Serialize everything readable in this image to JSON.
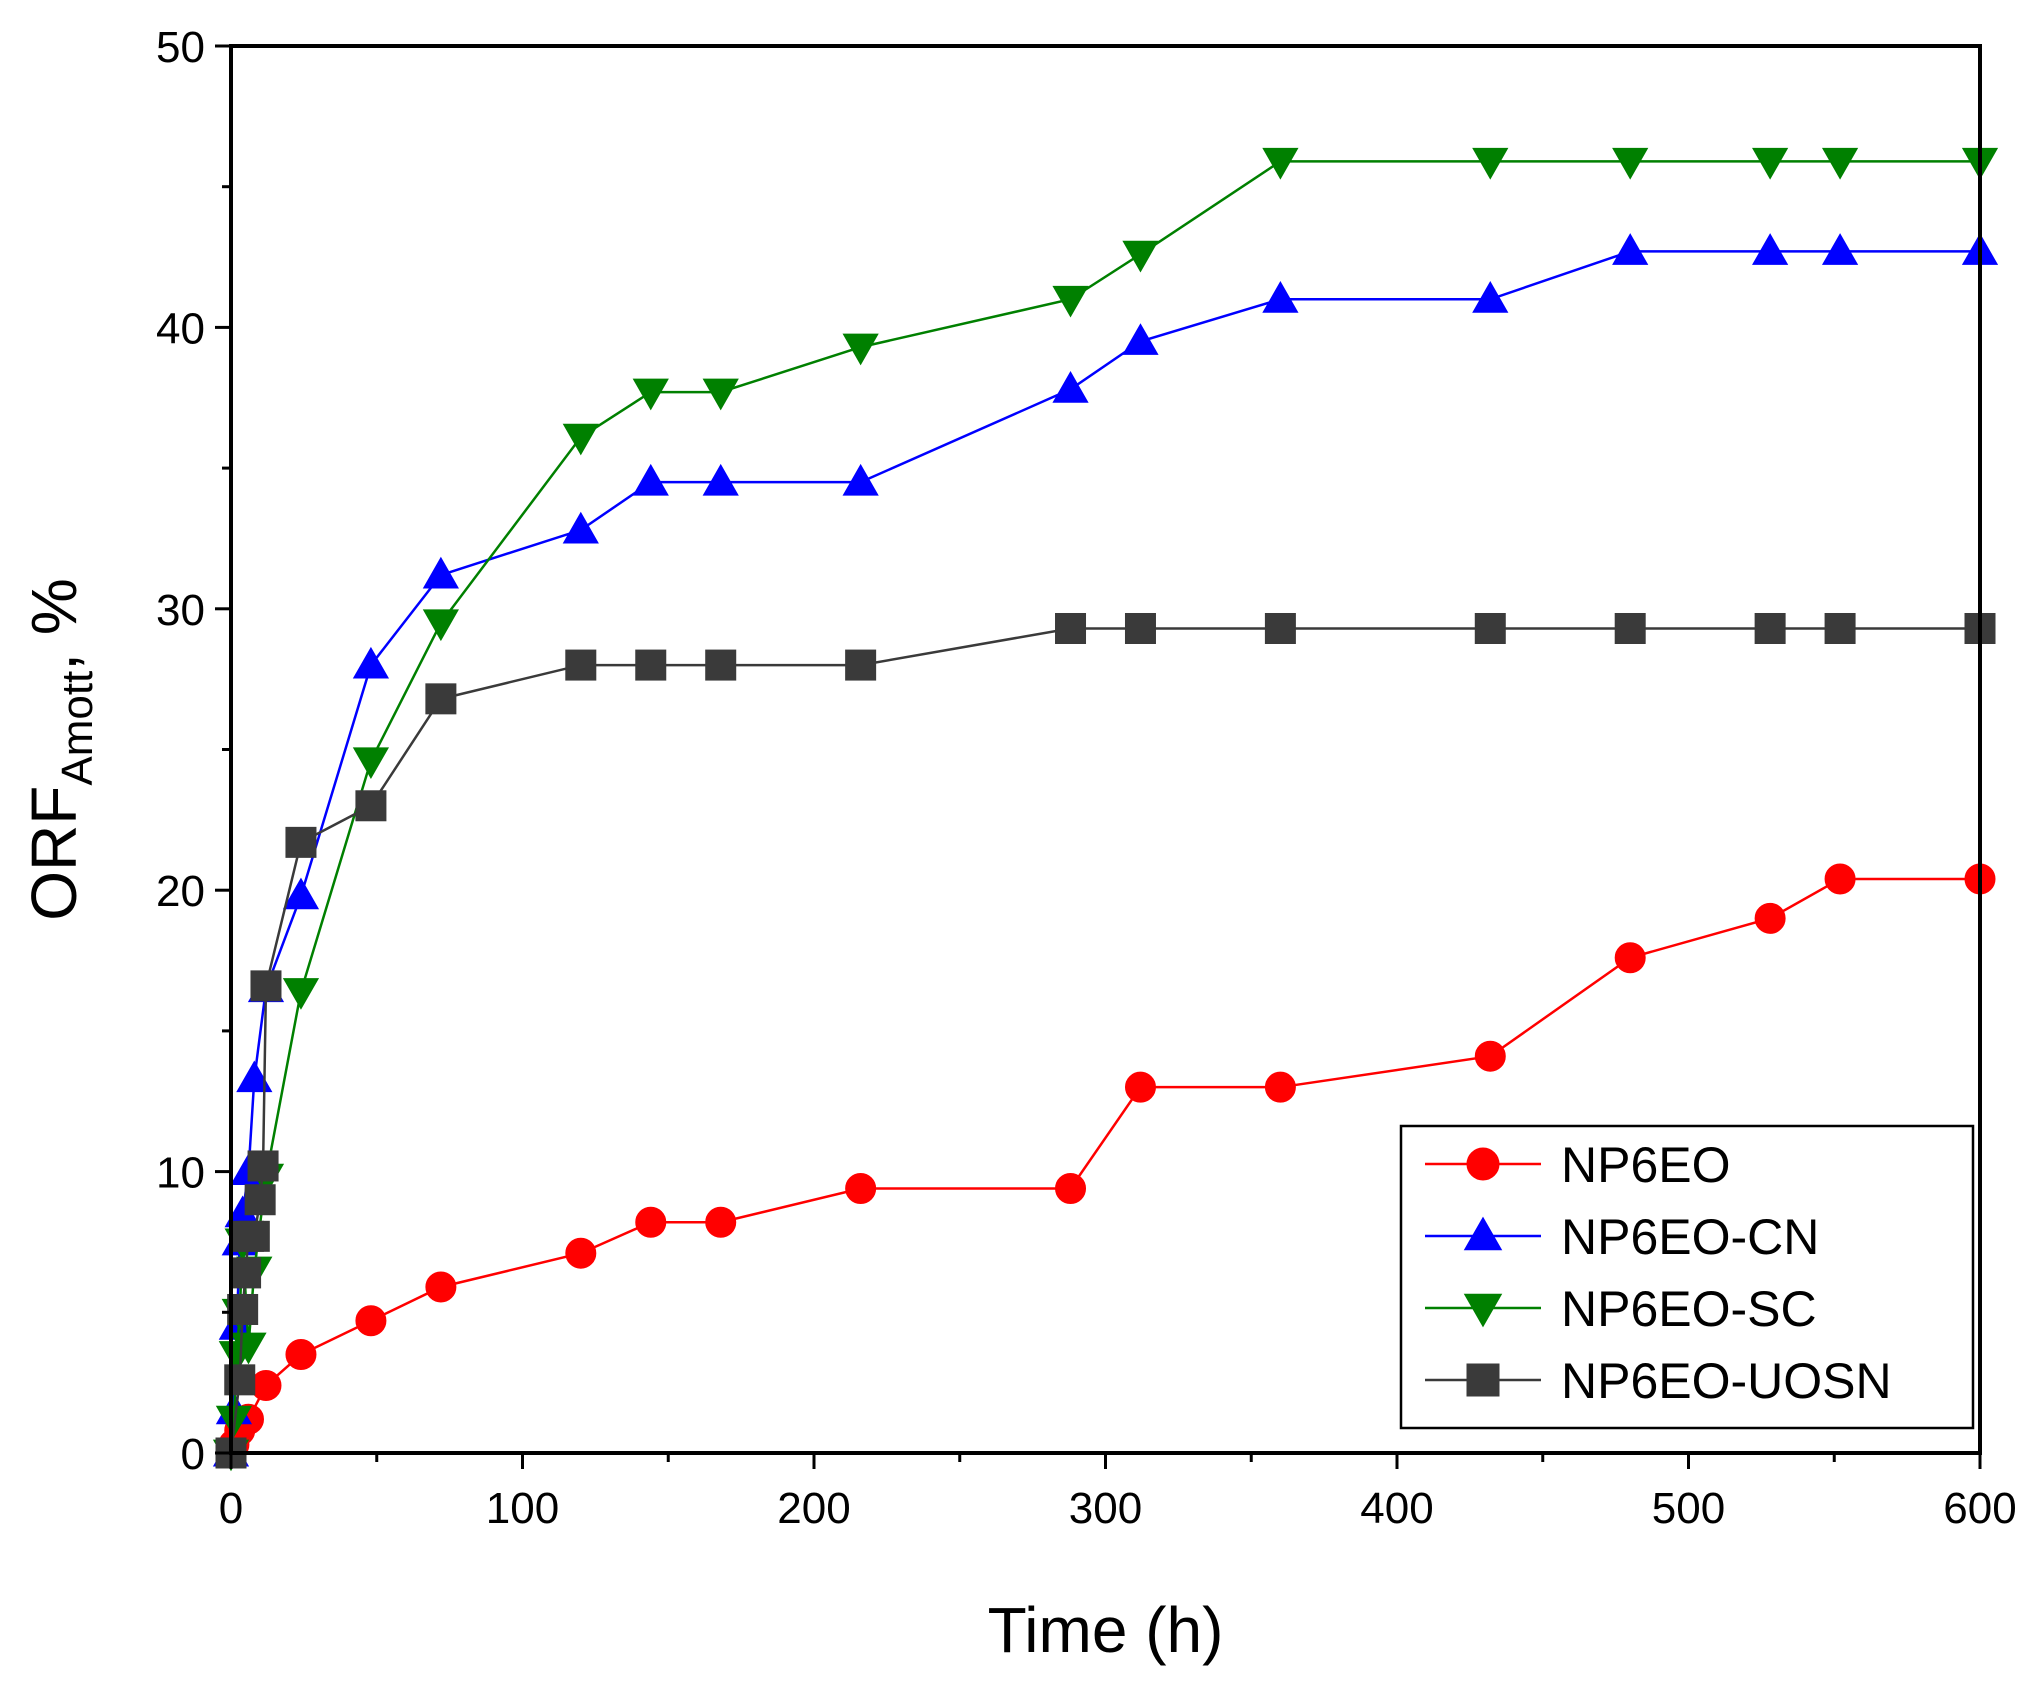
{
  "chart_data": {
    "type": "line",
    "title": "",
    "xlabel": "Time (h)",
    "ylabel": {
      "main": "ORF",
      "subscript": "Amott",
      "suffix": ", %"
    },
    "xlim": [
      0,
      600
    ],
    "ylim": [
      0,
      50
    ],
    "xticks": [
      0,
      100,
      200,
      300,
      400,
      500,
      600
    ],
    "yticks": [
      0,
      10,
      20,
      30,
      40,
      50
    ],
    "grid": false,
    "legend_position": "bottom-right",
    "series": [
      {
        "name": "NP6EO",
        "color": "#ff0000",
        "marker": "circle",
        "x": [
          0,
          1,
          3,
          6,
          12,
          24,
          48,
          72,
          120,
          144,
          168,
          216,
          288,
          312,
          360,
          432,
          480,
          528,
          552,
          600
        ],
        "y": [
          0,
          0.3,
          0.8,
          1.2,
          2.4,
          3.5,
          4.7,
          5.9,
          7.1,
          8.2,
          8.2,
          9.4,
          9.4,
          13.0,
          13.0,
          14.1,
          17.6,
          19.0,
          20.4,
          20.4
        ]
      },
      {
        "name": "NP6EO-CN",
        "color": "#0000ff",
        "marker": "triangle-up",
        "x": [
          0,
          1,
          2,
          3,
          4,
          6,
          8,
          12,
          24,
          48,
          72,
          120,
          144,
          168,
          216,
          288,
          312,
          360,
          432,
          480,
          528,
          552,
          600
        ],
        "y": [
          0,
          1.5,
          4.5,
          7.5,
          8.5,
          10.0,
          13.3,
          16.5,
          19.8,
          28.0,
          31.2,
          32.8,
          34.5,
          34.5,
          34.5,
          37.8,
          39.5,
          41.0,
          41.0,
          42.7,
          42.7,
          42.7,
          42.7
        ]
      },
      {
        "name": "NP6EO-SC",
        "color": "#008000",
        "marker": "triangle-down",
        "x": [
          0,
          1,
          2,
          3,
          4,
          6,
          8,
          12,
          24,
          48,
          72,
          120,
          144,
          168,
          216,
          288,
          312,
          360,
          432,
          480,
          528,
          552,
          600
        ],
        "y": [
          0,
          1.2,
          3.5,
          5.0,
          7.5,
          3.8,
          6.5,
          9.8,
          16.4,
          24.6,
          29.5,
          36.1,
          37.7,
          37.7,
          39.3,
          41.0,
          42.6,
          45.9,
          45.9,
          45.9,
          45.9,
          45.9,
          45.9
        ]
      },
      {
        "name": "NP6EO-UOSN",
        "color": "#3a3a3a",
        "marker": "square",
        "x": [
          0,
          3,
          4,
          5,
          6,
          8,
          10,
          11,
          12,
          24,
          48,
          72,
          120,
          144,
          168,
          216,
          288,
          312,
          360,
          432,
          480,
          528,
          552,
          600
        ],
        "y": [
          0,
          2.6,
          5.1,
          6.4,
          7.7,
          7.7,
          9.0,
          10.2,
          16.6,
          21.7,
          23.0,
          26.8,
          28.0,
          28.0,
          28.0,
          28.0,
          29.3,
          29.3,
          29.3,
          29.3,
          29.3,
          29.3,
          29.3,
          29.3
        ]
      }
    ]
  }
}
